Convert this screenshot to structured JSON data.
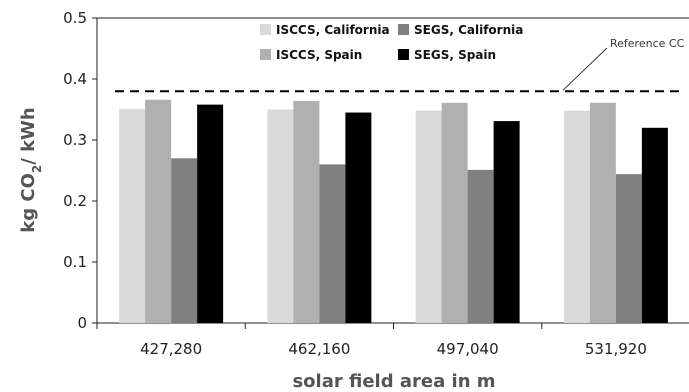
{
  "chart_data": {
    "type": "bar",
    "categories": [
      "427,280",
      "462,160",
      "497,040",
      "531,920"
    ],
    "series": [
      {
        "name": "ISCCS, California",
        "color": "#d9d9d9",
        "values": [
          0.351,
          0.35,
          0.348,
          0.348
        ]
      },
      {
        "name": "ISCCS, Spain",
        "color": "#b0b0b0",
        "values": [
          0.366,
          0.364,
          0.361,
          0.361
        ]
      },
      {
        "name": "SEGS, California",
        "color": "#808080",
        "values": [
          0.27,
          0.26,
          0.251,
          0.244
        ]
      },
      {
        "name": "SEGS, Spain",
        "color": "#000000",
        "values": [
          0.358,
          0.345,
          0.331,
          0.32
        ]
      }
    ],
    "reference": {
      "label": "Reference CC",
      "value": 0.38
    },
    "xlabel": "solar field area in m",
    "ylabel_parts": [
      "kg CO",
      "2",
      "/ kWh"
    ],
    "ylim": [
      0,
      0.5
    ],
    "yticks": [
      "0",
      "0.1",
      "0.2",
      "0.3",
      "0.4",
      "0.5"
    ],
    "grid": false,
    "legend_position": "top-center"
  }
}
